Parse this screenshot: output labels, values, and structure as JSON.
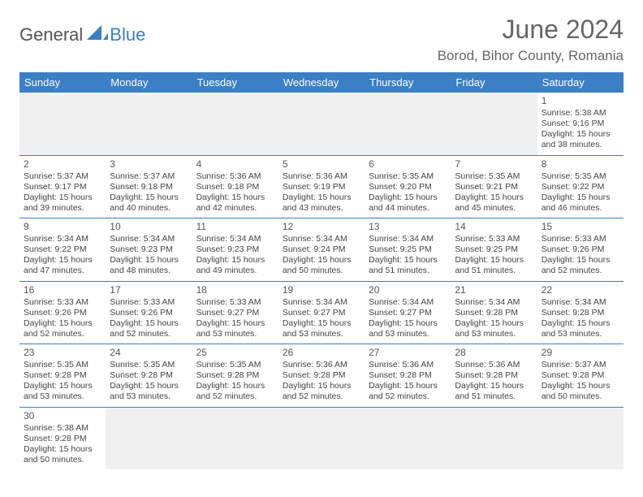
{
  "logo": {
    "part1": "General",
    "part2": "Blue"
  },
  "title": "June 2024",
  "location": "Borod, Bihor County, Romania",
  "colors": {
    "header_bg": "#3b7fc4",
    "header_text": "#ffffff",
    "divider": "#3b7fc4",
    "text": "#444444",
    "title_text": "#666666",
    "blank_bg": "#f0f0f0"
  },
  "day_labels": [
    "Sunday",
    "Monday",
    "Tuesday",
    "Wednesday",
    "Thursday",
    "Friday",
    "Saturday"
  ],
  "weeks": [
    [
      {
        "blank": true
      },
      {
        "blank": true
      },
      {
        "blank": true
      },
      {
        "blank": true
      },
      {
        "blank": true
      },
      {
        "blank": true
      },
      {
        "day": "1",
        "sunrise": "Sunrise: 5:38 AM",
        "sunset": "Sunset: 9:16 PM",
        "daylight": "Daylight: 15 hours and 38 minutes."
      }
    ],
    [
      {
        "day": "2",
        "sunrise": "Sunrise: 5:37 AM",
        "sunset": "Sunset: 9:17 PM",
        "daylight": "Daylight: 15 hours and 39 minutes."
      },
      {
        "day": "3",
        "sunrise": "Sunrise: 5:37 AM",
        "sunset": "Sunset: 9:18 PM",
        "daylight": "Daylight: 15 hours and 40 minutes."
      },
      {
        "day": "4",
        "sunrise": "Sunrise: 5:36 AM",
        "sunset": "Sunset: 9:18 PM",
        "daylight": "Daylight: 15 hours and 42 minutes."
      },
      {
        "day": "5",
        "sunrise": "Sunrise: 5:36 AM",
        "sunset": "Sunset: 9:19 PM",
        "daylight": "Daylight: 15 hours and 43 minutes."
      },
      {
        "day": "6",
        "sunrise": "Sunrise: 5:35 AM",
        "sunset": "Sunset: 9:20 PM",
        "daylight": "Daylight: 15 hours and 44 minutes."
      },
      {
        "day": "7",
        "sunrise": "Sunrise: 5:35 AM",
        "sunset": "Sunset: 9:21 PM",
        "daylight": "Daylight: 15 hours and 45 minutes."
      },
      {
        "day": "8",
        "sunrise": "Sunrise: 5:35 AM",
        "sunset": "Sunset: 9:22 PM",
        "daylight": "Daylight: 15 hours and 46 minutes."
      }
    ],
    [
      {
        "day": "9",
        "sunrise": "Sunrise: 5:34 AM",
        "sunset": "Sunset: 9:22 PM",
        "daylight": "Daylight: 15 hours and 47 minutes."
      },
      {
        "day": "10",
        "sunrise": "Sunrise: 5:34 AM",
        "sunset": "Sunset: 9:23 PM",
        "daylight": "Daylight: 15 hours and 48 minutes."
      },
      {
        "day": "11",
        "sunrise": "Sunrise: 5:34 AM",
        "sunset": "Sunset: 9:23 PM",
        "daylight": "Daylight: 15 hours and 49 minutes."
      },
      {
        "day": "12",
        "sunrise": "Sunrise: 5:34 AM",
        "sunset": "Sunset: 9:24 PM",
        "daylight": "Daylight: 15 hours and 50 minutes."
      },
      {
        "day": "13",
        "sunrise": "Sunrise: 5:34 AM",
        "sunset": "Sunset: 9:25 PM",
        "daylight": "Daylight: 15 hours and 51 minutes."
      },
      {
        "day": "14",
        "sunrise": "Sunrise: 5:33 AM",
        "sunset": "Sunset: 9:25 PM",
        "daylight": "Daylight: 15 hours and 51 minutes."
      },
      {
        "day": "15",
        "sunrise": "Sunrise: 5:33 AM",
        "sunset": "Sunset: 9:26 PM",
        "daylight": "Daylight: 15 hours and 52 minutes."
      }
    ],
    [
      {
        "day": "16",
        "sunrise": "Sunrise: 5:33 AM",
        "sunset": "Sunset: 9:26 PM",
        "daylight": "Daylight: 15 hours and 52 minutes."
      },
      {
        "day": "17",
        "sunrise": "Sunrise: 5:33 AM",
        "sunset": "Sunset: 9:26 PM",
        "daylight": "Daylight: 15 hours and 52 minutes."
      },
      {
        "day": "18",
        "sunrise": "Sunrise: 5:33 AM",
        "sunset": "Sunset: 9:27 PM",
        "daylight": "Daylight: 15 hours and 53 minutes."
      },
      {
        "day": "19",
        "sunrise": "Sunrise: 5:34 AM",
        "sunset": "Sunset: 9:27 PM",
        "daylight": "Daylight: 15 hours and 53 minutes."
      },
      {
        "day": "20",
        "sunrise": "Sunrise: 5:34 AM",
        "sunset": "Sunset: 9:27 PM",
        "daylight": "Daylight: 15 hours and 53 minutes."
      },
      {
        "day": "21",
        "sunrise": "Sunrise: 5:34 AM",
        "sunset": "Sunset: 9:28 PM",
        "daylight": "Daylight: 15 hours and 53 minutes."
      },
      {
        "day": "22",
        "sunrise": "Sunrise: 5:34 AM",
        "sunset": "Sunset: 9:28 PM",
        "daylight": "Daylight: 15 hours and 53 minutes."
      }
    ],
    [
      {
        "day": "23",
        "sunrise": "Sunrise: 5:35 AM",
        "sunset": "Sunset: 9:28 PM",
        "daylight": "Daylight: 15 hours and 53 minutes."
      },
      {
        "day": "24",
        "sunrise": "Sunrise: 5:35 AM",
        "sunset": "Sunset: 9:28 PM",
        "daylight": "Daylight: 15 hours and 53 minutes."
      },
      {
        "day": "25",
        "sunrise": "Sunrise: 5:35 AM",
        "sunset": "Sunset: 9:28 PM",
        "daylight": "Daylight: 15 hours and 52 minutes."
      },
      {
        "day": "26",
        "sunrise": "Sunrise: 5:36 AM",
        "sunset": "Sunset: 9:28 PM",
        "daylight": "Daylight: 15 hours and 52 minutes."
      },
      {
        "day": "27",
        "sunrise": "Sunrise: 5:36 AM",
        "sunset": "Sunset: 9:28 PM",
        "daylight": "Daylight: 15 hours and 52 minutes."
      },
      {
        "day": "28",
        "sunrise": "Sunrise: 5:36 AM",
        "sunset": "Sunset: 9:28 PM",
        "daylight": "Daylight: 15 hours and 51 minutes."
      },
      {
        "day": "29",
        "sunrise": "Sunrise: 5:37 AM",
        "sunset": "Sunset: 9:28 PM",
        "daylight": "Daylight: 15 hours and 50 minutes."
      }
    ],
    [
      {
        "day": "30",
        "sunrise": "Sunrise: 5:38 AM",
        "sunset": "Sunset: 9:28 PM",
        "daylight": "Daylight: 15 hours and 50 minutes."
      },
      {
        "blank": true
      },
      {
        "blank": true
      },
      {
        "blank": true
      },
      {
        "blank": true
      },
      {
        "blank": true
      },
      {
        "blank": true
      }
    ]
  ]
}
